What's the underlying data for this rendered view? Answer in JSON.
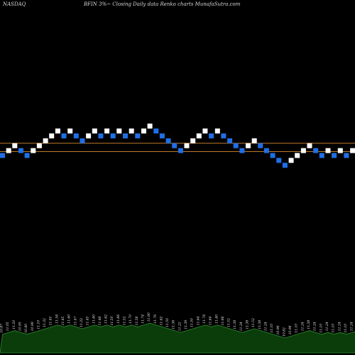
{
  "header": {
    "exchange": "NASDAQ",
    "title": "BFIN  3%~  Closing Daily data  Renko  charts MunafaSutra.com"
  },
  "colors": {
    "background": "#000000",
    "up_brick": "#ffffff",
    "down_brick": "#1f6fe6",
    "reference_line": "#c07a2a",
    "volume_area": "#0b3d0b",
    "volume_outline": "#2e8b2e"
  },
  "chart_data": {
    "type": "renko",
    "title": "BFIN  3%~  Closing Daily data  Renko  charts MunafaSutra.com",
    "bricks": [
      {
        "level": 0,
        "dir": "down"
      },
      {
        "level": 1,
        "dir": "up"
      },
      {
        "level": 2,
        "dir": "up"
      },
      {
        "level": 1,
        "dir": "down"
      },
      {
        "level": 0,
        "dir": "down"
      },
      {
        "level": 1,
        "dir": "up"
      },
      {
        "level": 2,
        "dir": "up"
      },
      {
        "level": 3,
        "dir": "up"
      },
      {
        "level": 4,
        "dir": "up"
      },
      {
        "level": 5,
        "dir": "up"
      },
      {
        "level": 4,
        "dir": "down"
      },
      {
        "level": 5,
        "dir": "up"
      },
      {
        "level": 4,
        "dir": "down"
      },
      {
        "level": 3,
        "dir": "down"
      },
      {
        "level": 4,
        "dir": "up"
      },
      {
        "level": 5,
        "dir": "up"
      },
      {
        "level": 4,
        "dir": "down"
      },
      {
        "level": 5,
        "dir": "up"
      },
      {
        "level": 4,
        "dir": "down"
      },
      {
        "level": 5,
        "dir": "up"
      },
      {
        "level": 4,
        "dir": "down"
      },
      {
        "level": 5,
        "dir": "up"
      },
      {
        "level": 4,
        "dir": "down"
      },
      {
        "level": 5,
        "dir": "up"
      },
      {
        "level": 6,
        "dir": "up"
      },
      {
        "level": 5,
        "dir": "down"
      },
      {
        "level": 4,
        "dir": "down"
      },
      {
        "level": 3,
        "dir": "down"
      },
      {
        "level": 2,
        "dir": "down"
      },
      {
        "level": 1,
        "dir": "down"
      },
      {
        "level": 2,
        "dir": "up"
      },
      {
        "level": 3,
        "dir": "up"
      },
      {
        "level": 4,
        "dir": "up"
      },
      {
        "level": 5,
        "dir": "up"
      },
      {
        "level": 4,
        "dir": "down"
      },
      {
        "level": 5,
        "dir": "up"
      },
      {
        "level": 4,
        "dir": "down"
      },
      {
        "level": 3,
        "dir": "down"
      },
      {
        "level": 2,
        "dir": "down"
      },
      {
        "level": 1,
        "dir": "down"
      },
      {
        "level": 2,
        "dir": "up"
      },
      {
        "level": 3,
        "dir": "up"
      },
      {
        "level": 2,
        "dir": "down"
      },
      {
        "level": 1,
        "dir": "down"
      },
      {
        "level": 0,
        "dir": "down"
      },
      {
        "level": -1,
        "dir": "down"
      },
      {
        "level": -2,
        "dir": "down"
      },
      {
        "level": -1,
        "dir": "up"
      },
      {
        "level": 0,
        "dir": "up"
      },
      {
        "level": 1,
        "dir": "up"
      },
      {
        "level": 2,
        "dir": "up"
      },
      {
        "level": 1,
        "dir": "down"
      },
      {
        "level": 0,
        "dir": "down"
      },
      {
        "level": 1,
        "dir": "up"
      },
      {
        "level": 0,
        "dir": "down"
      },
      {
        "level": 1,
        "dir": "up"
      },
      {
        "level": 0,
        "dir": "down"
      },
      {
        "level": 1,
        "dir": "up"
      },
      {
        "level": 2,
        "dir": "up"
      }
    ],
    "reference_levels": [
      2.5,
      0.8
    ],
    "volume_labels": [
      "10.87",
      "11.05",
      "11.20",
      "10.95",
      "10.80",
      "10.99",
      "11.10",
      "11.32",
      "11.45",
      "11.58",
      "11.45",
      "11.60",
      "11.47",
      "11.33",
      "11.45",
      "11.60",
      "11.48",
      "11.62",
      "11.50",
      "11.66",
      "11.52",
      "11.70",
      "11.58",
      "11.74",
      "11.90",
      "11.76",
      "11.62",
      "11.50",
      "11.36",
      "11.22",
      "11.36",
      "11.50",
      "11.64",
      "11.78",
      "11.64",
      "11.80",
      "11.66",
      "11.52",
      "11.38",
      "11.24",
      "11.38",
      "11.52",
      "11.38",
      "11.24",
      "11.10",
      "10.96",
      "10.82",
      "10.96",
      "11.10",
      "11.24",
      "11.38",
      "11.24",
      "11.10",
      "11.24",
      "11.10",
      "11.24",
      "11.10",
      "11.24",
      "11.38"
    ]
  }
}
